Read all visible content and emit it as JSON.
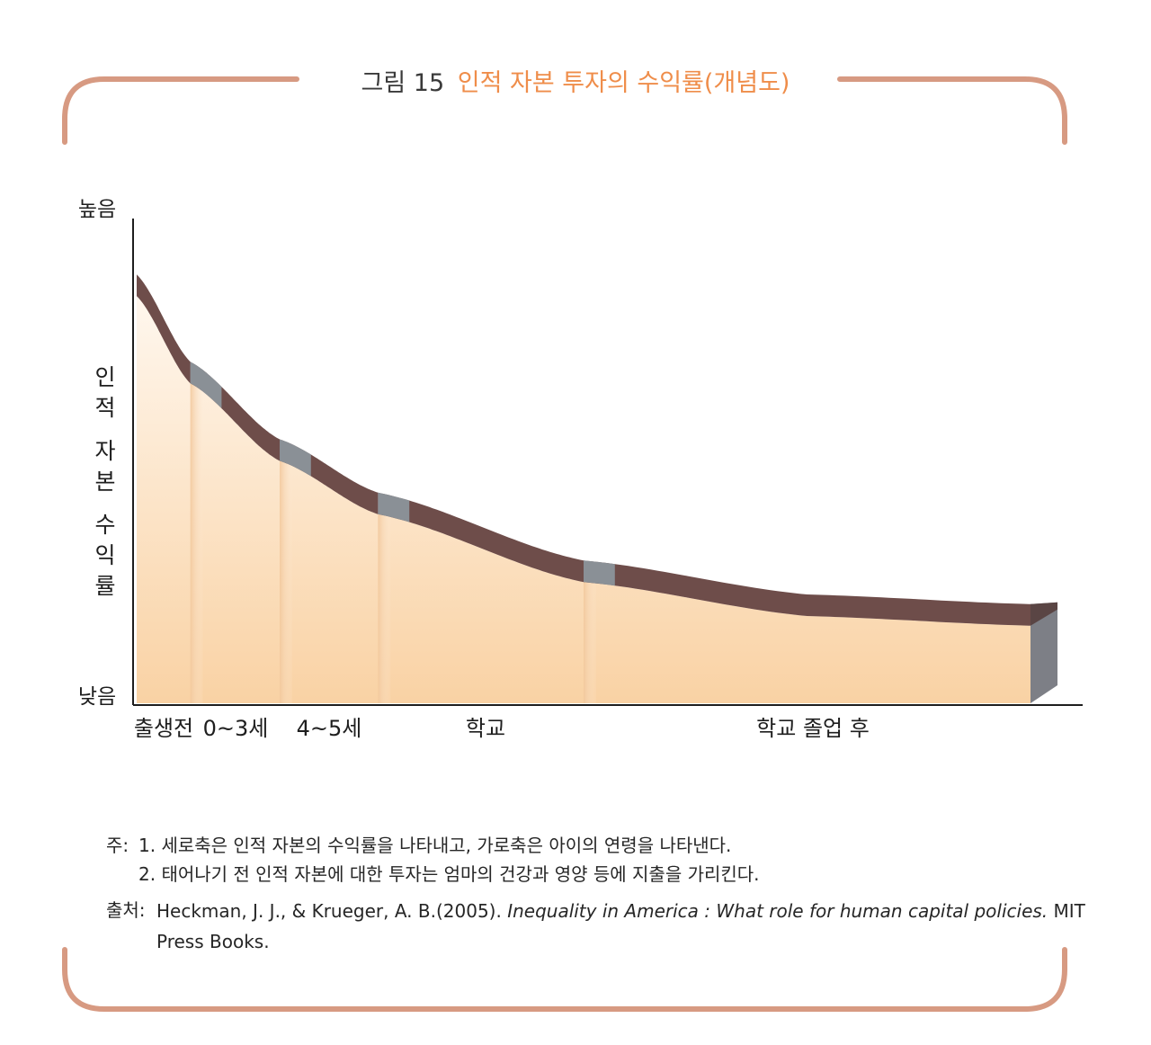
{
  "figure": {
    "number_label": "그림 15",
    "title": "인적 자본 투자의 수익률(개념도)"
  },
  "chart_data": {
    "type": "area",
    "title": "인적 자본 투자의 수익률(개념도)",
    "ylabel": "인적 자본 수익률",
    "y_ticks": {
      "high": "높음",
      "low": "낮음"
    },
    "xlabel": "",
    "categories": [
      "출생전",
      "0~3세",
      "4~5세",
      "학교",
      "학교 졸업 후"
    ],
    "segments": [
      {
        "label": "출생전",
        "start": 0.0,
        "end": 0.06
      },
      {
        "label": "0~3세",
        "start": 0.06,
        "end": 0.16
      },
      {
        "label": "4~5세",
        "start": 0.16,
        "end": 0.27
      },
      {
        "label": "학교",
        "start": 0.27,
        "end": 0.5
      },
      {
        "label": "학교 졸업 후",
        "start": 0.5,
        "end": 1.0
      }
    ],
    "curve": {
      "x": [
        0.0,
        0.06,
        0.16,
        0.27,
        0.5,
        0.75,
        1.0
      ],
      "y": [
        0.84,
        0.66,
        0.5,
        0.39,
        0.25,
        0.18,
        0.16
      ]
    },
    "ylim": [
      0,
      1
    ],
    "xlim": [
      0,
      1
    ],
    "grid": false,
    "legend": "none",
    "colors": {
      "band_dark": "#6e4d4a",
      "band_light": "#8a9096",
      "fill_top": "#fff6ec",
      "fill_bottom": "#f9d3a6",
      "axis": "#1e1e1e"
    }
  },
  "notes": {
    "label": "주:",
    "items": [
      "1. 세로축은 인적 자본의 수익률을 나타내고, 가로축은 아이의 연령을 나타낸다.",
      "2. 태어나기 전 인적 자본에 대한 투자는 엄마의 건강과 영양 등에 지출을 가리킨다."
    ]
  },
  "source": {
    "label": "출처:",
    "authors": "Heckman, J. J., & Krueger, A. B.(2005).",
    "book_title": "Inequality in America : What role for human capital policies.",
    "publisher": "MIT Press Books."
  },
  "frame_color": "#d79a82"
}
